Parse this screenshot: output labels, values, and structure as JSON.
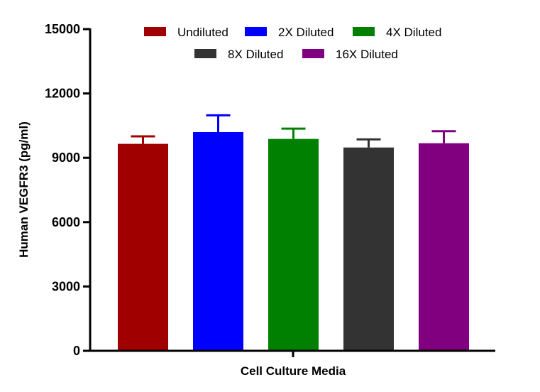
{
  "chart_data": {
    "type": "bar",
    "ylabel": "Human VEGFR3 (pg/ml)",
    "xlabel": "Cell Culture Media",
    "ylim": [
      0,
      15000
    ],
    "yticks": [
      0,
      3000,
      6000,
      9000,
      12000,
      15000
    ],
    "ytick_labels": [
      "0",
      "3000",
      "6000",
      "9000",
      "12000",
      "15000"
    ],
    "grid": false,
    "legend_position": "top",
    "series": [
      {
        "name": "Undiluted",
        "value": 9650,
        "error": 350,
        "color": "#a00000"
      },
      {
        "name": "2X Diluted",
        "value": 10200,
        "error": 780,
        "color": "#0000ff"
      },
      {
        "name": "4X Diluted",
        "value": 9880,
        "error": 480,
        "color": "#008000"
      },
      {
        "name": "8X Diluted",
        "value": 9480,
        "error": 380,
        "color": "#333333"
      },
      {
        "name": "16X Diluted",
        "value": 9680,
        "error": 560,
        "color": "#800080"
      }
    ]
  }
}
